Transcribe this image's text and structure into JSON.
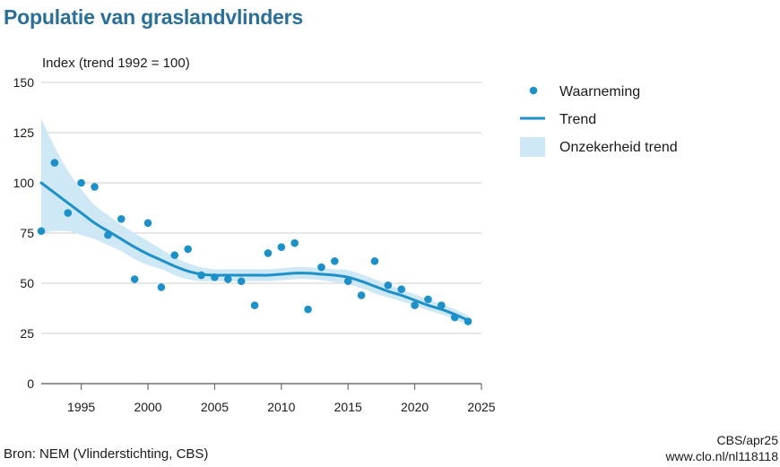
{
  "chart_data": {
    "type": "scatter",
    "title": "Populatie van graslandvlinders",
    "ylabel": "Index (trend 1992 = 100)",
    "xlabel": "",
    "xlim": [
      1992,
      2025
    ],
    "ylim": [
      0,
      150
    ],
    "x_ticks": [
      1995,
      2000,
      2005,
      2010,
      2015,
      2020,
      2025
    ],
    "y_ticks": [
      0,
      25,
      50,
      75,
      100,
      125,
      150
    ],
    "grid": "horizontal",
    "legend_position": "right",
    "colors": {
      "points": "#1e90c8",
      "trend": "#1e90c8",
      "band": "#cfe8f6"
    },
    "series": [
      {
        "name": "Waarneming",
        "kind": "points",
        "x": [
          1992,
          1993,
          1994,
          1995,
          1996,
          1997,
          1998,
          1999,
          2000,
          2001,
          2002,
          2003,
          2004,
          2005,
          2006,
          2007,
          2008,
          2009,
          2010,
          2011,
          2012,
          2013,
          2014,
          2015,
          2016,
          2017,
          2018,
          2019,
          2020,
          2021,
          2022,
          2023,
          2024
        ],
        "y": [
          76,
          110,
          85,
          100,
          98,
          74,
          82,
          52,
          80,
          48,
          64,
          67,
          54,
          53,
          52,
          51,
          39,
          65,
          68,
          70,
          37,
          58,
          61,
          51,
          44,
          61,
          49,
          47,
          39,
          42,
          39,
          33,
          31
        ]
      },
      {
        "name": "Trend",
        "kind": "line",
        "x": [
          1992,
          1993,
          1994,
          1995,
          1996,
          1997,
          1998,
          1999,
          2000,
          2001,
          2002,
          2003,
          2004,
          2005,
          2006,
          2007,
          2008,
          2009,
          2010,
          2011,
          2012,
          2013,
          2014,
          2015,
          2016,
          2017,
          2018,
          2019,
          2020,
          2021,
          2022,
          2023,
          2024
        ],
        "y": [
          100,
          95,
          90,
          85,
          80,
          76,
          72,
          68,
          64.5,
          61.5,
          58.5,
          56,
          54.5,
          54,
          54,
          54,
          54,
          54,
          54.5,
          55,
          55,
          54.5,
          54,
          53,
          51,
          48.5,
          46,
          44,
          41.5,
          39,
          37,
          34.5,
          31.5
        ]
      },
      {
        "name": "Onzekerheid trend",
        "kind": "band",
        "x": [
          1992,
          1993,
          1994,
          1995,
          1996,
          1997,
          1998,
          1999,
          2000,
          2001,
          2002,
          2003,
          2004,
          2005,
          2006,
          2007,
          2008,
          2009,
          2010,
          2011,
          2012,
          2013,
          2014,
          2015,
          2016,
          2017,
          2018,
          2019,
          2020,
          2021,
          2022,
          2023,
          2024
        ],
        "lower": [
          75,
          76,
          76,
          74,
          72,
          69,
          66,
          62,
          59,
          57,
          54,
          52,
          51,
          51,
          51,
          51,
          51,
          51,
          51.5,
          52,
          52,
          51.5,
          50.5,
          49.5,
          47.5,
          45,
          43,
          41,
          39,
          36.5,
          34.5,
          32,
          29
        ],
        "upper": [
          132,
          118,
          106,
          97,
          89,
          84,
          79,
          75,
          71,
          67,
          63,
          60,
          58,
          57,
          57,
          57,
          57,
          57,
          57.5,
          58,
          58,
          57.5,
          57,
          56.5,
          54.5,
          52,
          49.5,
          47,
          44.5,
          42,
          39.5,
          37,
          34
        ]
      }
    ]
  },
  "source": "Bron: NEM (Vlinderstichting, CBS)",
  "credit": {
    "line1": "CBS/apr25",
    "line2": "www.clo.nl/nl118118"
  }
}
